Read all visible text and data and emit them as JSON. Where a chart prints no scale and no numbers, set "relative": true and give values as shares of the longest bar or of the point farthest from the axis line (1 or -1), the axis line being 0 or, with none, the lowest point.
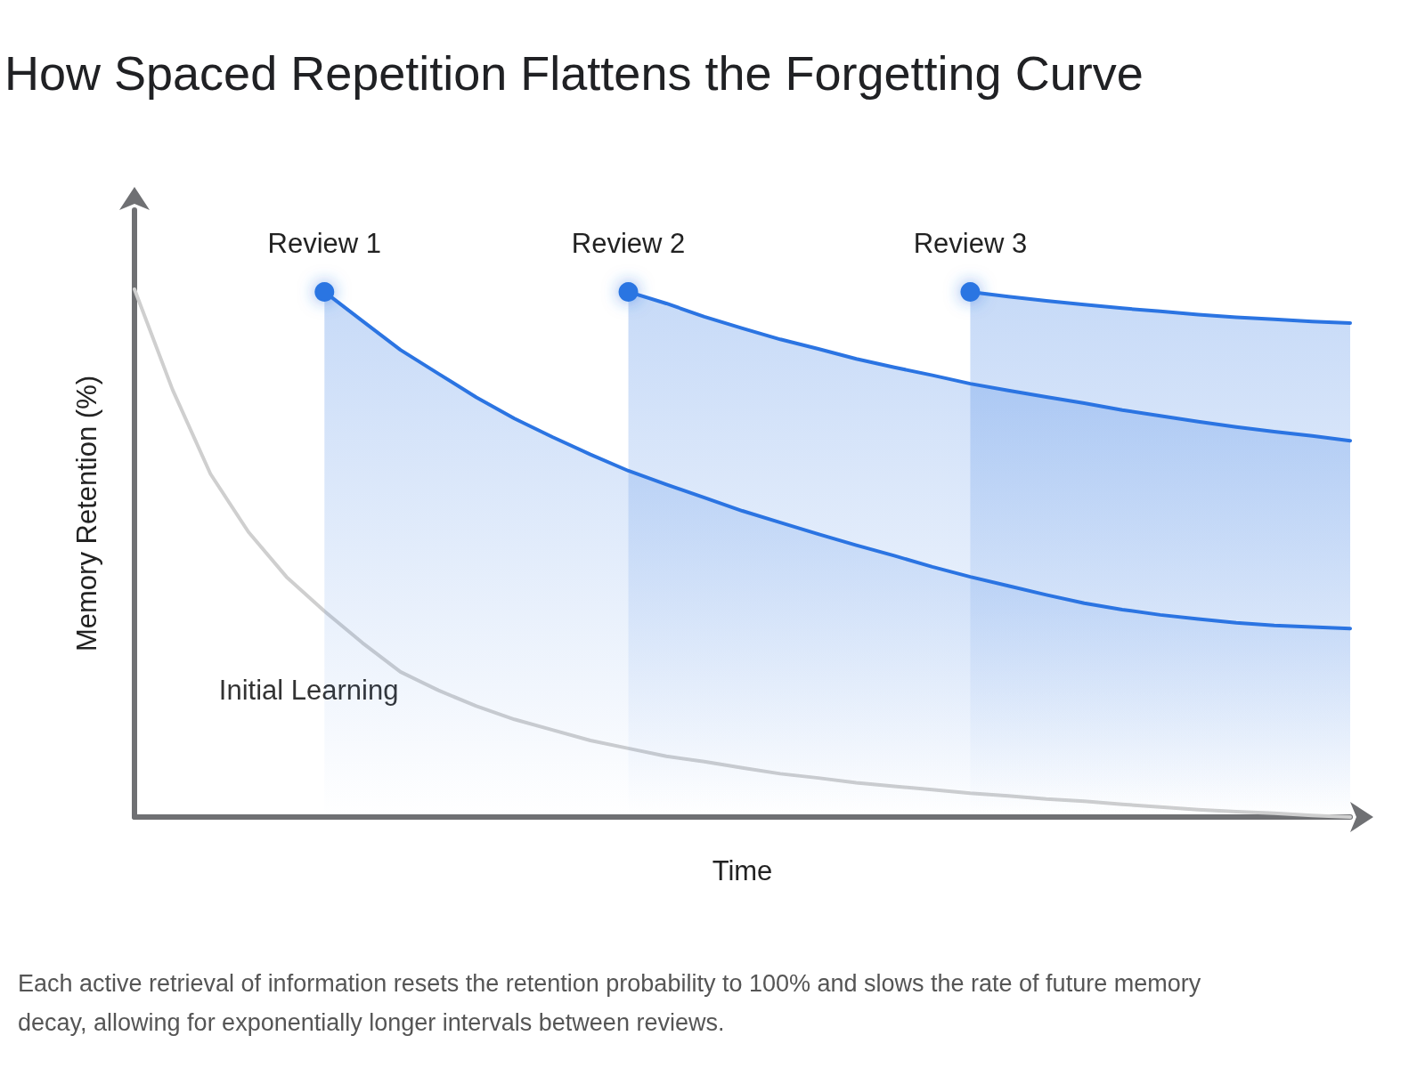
{
  "chart_data": {
    "type": "line",
    "title": "How Spaced Repetition Flattens the Forgetting Curve",
    "xlabel": "Time",
    "ylabel": "Memory Retention (%)",
    "annotations": [
      "Each active retrieval of information resets the retention probability to 100% and slows the rate of future memory decay, allowing for exponentially longer intervals between reviews."
    ],
    "relative": true,
    "legend": false,
    "grid": false,
    "categories": [
      null,
      null,
      null,
      null,
      null,
      null,
      null,
      null,
      null,
      null,
      null,
      null,
      null,
      null,
      null,
      null,
      null,
      null,
      null,
      null,
      null,
      null,
      null,
      null,
      null,
      null,
      null,
      null,
      null,
      null,
      null,
      null,
      null
    ],
    "series": [
      {
        "name": "Initial Learning",
        "color": "#cfcfcf",
        "values": [
          1.0,
          0.81,
          0.65,
          0.54,
          0.455,
          0.39,
          0.33,
          0.275,
          0.24,
          0.21,
          0.185,
          0.165,
          0.145,
          0.13,
          0.115,
          0.105,
          0.093,
          0.082,
          0.074,
          0.065,
          0.058,
          0.052,
          0.045,
          0.04,
          0.034,
          0.03,
          0.024,
          0.019,
          0.014,
          0.01,
          0.007,
          0.003,
          0
        ]
      },
      {
        "name": "Review 1",
        "type": "area",
        "color": "#2b74e2",
        "values": [
          null,
          null,
          null,
          null,
          null,
          0.995,
          0.94,
          0.885,
          0.84,
          0.795,
          0.755,
          0.72,
          0.687,
          0.656,
          0.63,
          0.605,
          0.58,
          0.558,
          0.536,
          0.515,
          0.495,
          0.474,
          0.455,
          0.438,
          0.421,
          0.405,
          0.393,
          0.383,
          0.375,
          0.368,
          0.363,
          0.36,
          0.357
        ]
      },
      {
        "name": "Review 2",
        "type": "area",
        "color": "#2b74e2",
        "values": [
          null,
          null,
          null,
          null,
          null,
          null,
          null,
          null,
          null,
          null,
          null,
          null,
          null,
          0.995,
          0.973,
          0.948,
          0.926,
          0.905,
          0.887,
          0.868,
          0.852,
          0.837,
          0.821,
          0.808,
          0.796,
          0.784,
          0.771,
          0.76,
          0.749,
          0.739,
          0.73,
          0.722,
          0.713
        ]
      },
      {
        "name": "Review 3",
        "type": "area",
        "color": "#2b74e2",
        "values": [
          null,
          null,
          null,
          null,
          null,
          null,
          null,
          null,
          null,
          null,
          null,
          null,
          null,
          null,
          null,
          null,
          null,
          null,
          null,
          null,
          null,
          null,
          0.995,
          0.986,
          0.978,
          0.971,
          0.964,
          0.958,
          0.952,
          0.947,
          0.943,
          0.939,
          0.936
        ]
      }
    ]
  }
}
